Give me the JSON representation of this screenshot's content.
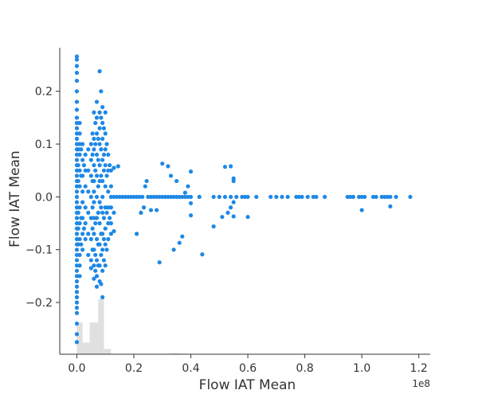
{
  "chart_data": {
    "type": "scatter",
    "title": "",
    "xlabel": "Flow IAT Mean",
    "ylabel": "Flow IAT Mean",
    "x_offset_label": "1e8",
    "xlim": [
      -0.06,
      1.24
    ],
    "ylim": [
      -0.298,
      0.29
    ],
    "x_ticks": [
      0.0,
      0.2,
      0.4,
      0.6,
      0.8,
      1.0,
      1.2
    ],
    "x_tick_labels": [
      "0.0",
      "0.2",
      "0.4",
      "0.6",
      "0.8",
      "1.0",
      "1.2"
    ],
    "y_ticks": [
      -0.2,
      -0.1,
      0.0,
      0.1,
      0.2
    ],
    "y_tick_labels": [
      "−0.2",
      "−0.1",
      "0.0",
      "0.1",
      "0.2"
    ],
    "grid": false,
    "point_color": "#1e88e5",
    "histogram_color": "#e0e0e0",
    "histogram": {
      "bins": [
        {
          "x0": 0.0,
          "x1": 0.02,
          "height": 0.06
        },
        {
          "x0": 0.02,
          "x1": 0.045,
          "height": 0.022
        },
        {
          "x0": 0.045,
          "x1": 0.075,
          "height": 0.06
        },
        {
          "x0": 0.075,
          "x1": 0.095,
          "height": 0.105
        },
        {
          "x0": 0.095,
          "x1": 0.12,
          "height": 0.01
        },
        {
          "x0": 0.33,
          "x1": 0.36,
          "height": 0.002
        }
      ]
    },
    "points": [
      [
        0.0,
        0.266
      ],
      [
        0.0,
        0.26
      ],
      [
        0.0,
        0.248
      ],
      [
        0.0,
        0.235
      ],
      [
        0.0,
        0.22
      ],
      [
        0.0,
        0.2
      ],
      [
        0.0,
        0.18
      ],
      [
        0.0,
        0.165
      ],
      [
        0.0,
        0.15
      ],
      [
        0.0,
        0.14
      ],
      [
        0.0,
        0.13
      ],
      [
        0.0,
        0.12
      ],
      [
        0.0,
        0.11
      ],
      [
        0.0,
        0.1
      ],
      [
        0.0,
        0.09
      ],
      [
        0.0,
        0.08
      ],
      [
        0.0,
        0.07
      ],
      [
        0.0,
        0.06
      ],
      [
        0.0,
        0.05
      ],
      [
        0.0,
        0.04
      ],
      [
        0.0,
        0.03
      ],
      [
        0.0,
        0.02
      ],
      [
        0.0,
        0.01
      ],
      [
        0.0,
        0.0
      ],
      [
        0.0,
        -0.01
      ],
      [
        0.0,
        -0.02
      ],
      [
        0.0,
        -0.03
      ],
      [
        0.0,
        -0.04
      ],
      [
        0.0,
        -0.05
      ],
      [
        0.0,
        -0.06
      ],
      [
        0.0,
        -0.07
      ],
      [
        0.0,
        -0.08
      ],
      [
        0.0,
        -0.09
      ],
      [
        0.0,
        -0.1
      ],
      [
        0.0,
        -0.11
      ],
      [
        0.0,
        -0.12
      ],
      [
        0.0,
        -0.13
      ],
      [
        0.0,
        -0.14
      ],
      [
        0.0,
        -0.15
      ],
      [
        0.0,
        -0.16
      ],
      [
        0.0,
        -0.17
      ],
      [
        0.0,
        -0.18
      ],
      [
        0.0,
        -0.19
      ],
      [
        0.0,
        -0.2
      ],
      [
        0.0,
        -0.21
      ],
      [
        0.0,
        -0.22
      ],
      [
        0.0,
        -0.24
      ],
      [
        0.0,
        -0.26
      ],
      [
        0.0,
        -0.275
      ],
      [
        0.005,
        0.09
      ],
      [
        0.005,
        0.06
      ],
      [
        0.005,
        0.03
      ],
      [
        0.005,
        -0.03
      ],
      [
        0.005,
        -0.06
      ],
      [
        0.005,
        -0.09
      ],
      [
        0.01,
        0.14
      ],
      [
        0.01,
        0.12
      ],
      [
        0.01,
        0.1
      ],
      [
        0.01,
        0.08
      ],
      [
        0.01,
        0.05
      ],
      [
        0.01,
        0.02
      ],
      [
        0.01,
        -0.02
      ],
      [
        0.01,
        -0.05
      ],
      [
        0.01,
        -0.08
      ],
      [
        0.01,
        -0.11
      ],
      [
        0.01,
        -0.13
      ],
      [
        0.01,
        -0.15
      ],
      [
        0.015,
        0.09
      ],
      [
        0.015,
        0.04
      ],
      [
        0.015,
        -0.04
      ],
      [
        0.015,
        -0.09
      ],
      [
        0.02,
        0.1
      ],
      [
        0.02,
        0.07
      ],
      [
        0.02,
        0.04
      ],
      [
        0.02,
        0.01
      ],
      [
        0.02,
        -0.01
      ],
      [
        0.02,
        -0.04
      ],
      [
        0.02,
        -0.07
      ],
      [
        0.02,
        -0.1
      ],
      [
        0.025,
        0.06
      ],
      [
        0.025,
        -0.06
      ],
      [
        0.03,
        0.08
      ],
      [
        0.03,
        0.05
      ],
      [
        0.03,
        0.02
      ],
      [
        0.03,
        -0.02
      ],
      [
        0.03,
        -0.05
      ],
      [
        0.03,
        -0.08
      ],
      [
        0.04,
        0.09
      ],
      [
        0.04,
        0.05
      ],
      [
        0.04,
        0.01
      ],
      [
        0.04,
        -0.03
      ],
      [
        0.04,
        -0.07
      ],
      [
        0.04,
        -0.11
      ],
      [
        0.05,
        0.1
      ],
      [
        0.05,
        0.07
      ],
      [
        0.05,
        0.04
      ],
      [
        0.05,
        0.0
      ],
      [
        0.05,
        -0.04
      ],
      [
        0.05,
        -0.08
      ],
      [
        0.05,
        -0.12
      ],
      [
        0.05,
        -0.135
      ],
      [
        0.055,
        0.12
      ],
      [
        0.055,
        0.08
      ],
      [
        0.055,
        0.03
      ],
      [
        0.055,
        -0.02
      ],
      [
        0.055,
        -0.06
      ],
      [
        0.055,
        -0.1
      ],
      [
        0.06,
        0.16
      ],
      [
        0.06,
        0.11
      ],
      [
        0.06,
        0.09
      ],
      [
        0.06,
        0.06
      ],
      [
        0.06,
        0.03
      ],
      [
        0.06,
        0.01
      ],
      [
        0.06,
        -0.01
      ],
      [
        0.06,
        -0.04
      ],
      [
        0.06,
        -0.07
      ],
      [
        0.06,
        -0.1
      ],
      [
        0.06,
        -0.13
      ],
      [
        0.06,
        -0.155
      ],
      [
        0.065,
        0.14
      ],
      [
        0.065,
        0.1
      ],
      [
        0.065,
        0.05
      ],
      [
        0.065,
        -0.05
      ],
      [
        0.065,
        -0.11
      ],
      [
        0.065,
        -0.14
      ],
      [
        0.07,
        0.18
      ],
      [
        0.07,
        0.15
      ],
      [
        0.07,
        0.12
      ],
      [
        0.07,
        0.08
      ],
      [
        0.07,
        0.04
      ],
      [
        0.07,
        0.0
      ],
      [
        0.07,
        -0.04
      ],
      [
        0.07,
        -0.08
      ],
      [
        0.07,
        -0.12
      ],
      [
        0.07,
        -0.15
      ],
      [
        0.07,
        -0.17
      ],
      [
        0.075,
        0.11
      ],
      [
        0.075,
        0.07
      ],
      [
        0.075,
        0.02
      ],
      [
        0.075,
        -0.03
      ],
      [
        0.075,
        -0.09
      ],
      [
        0.075,
        -0.13
      ],
      [
        0.08,
        0.238
      ],
      [
        0.08,
        0.16
      ],
      [
        0.08,
        0.13
      ],
      [
        0.08,
        0.1
      ],
      [
        0.08,
        0.06
      ],
      [
        0.08,
        0.03
      ],
      [
        0.08,
        -0.01
      ],
      [
        0.08,
        -0.05
      ],
      [
        0.08,
        -0.09
      ],
      [
        0.08,
        -0.13
      ],
      [
        0.08,
        -0.16
      ],
      [
        0.085,
        0.2
      ],
      [
        0.085,
        0.15
      ],
      [
        0.085,
        0.09
      ],
      [
        0.085,
        0.04
      ],
      [
        0.085,
        -0.02
      ],
      [
        0.085,
        -0.07
      ],
      [
        0.085,
        -0.11
      ],
      [
        0.085,
        -0.165
      ],
      [
        0.09,
        0.17
      ],
      [
        0.09,
        0.14
      ],
      [
        0.09,
        0.11
      ],
      [
        0.09,
        0.07
      ],
      [
        0.09,
        0.03
      ],
      [
        0.09,
        0.0
      ],
      [
        0.09,
        -0.03
      ],
      [
        0.09,
        -0.07
      ],
      [
        0.09,
        -0.1
      ],
      [
        0.09,
        -0.14
      ],
      [
        0.09,
        -0.19
      ],
      [
        0.095,
        0.13
      ],
      [
        0.095,
        0.08
      ],
      [
        0.095,
        0.05
      ],
      [
        0.095,
        -0.04
      ],
      [
        0.095,
        -0.08
      ],
      [
        0.095,
        -0.12
      ],
      [
        0.1,
        0.16
      ],
      [
        0.1,
        0.12
      ],
      [
        0.1,
        0.09
      ],
      [
        0.1,
        0.06
      ],
      [
        0.1,
        0.02
      ],
      [
        0.1,
        -0.02
      ],
      [
        0.1,
        -0.06
      ],
      [
        0.1,
        -0.09
      ],
      [
        0.1,
        -0.13
      ],
      [
        0.105,
        0.1
      ],
      [
        0.105,
        0.04
      ],
      [
        0.105,
        -0.03
      ],
      [
        0.105,
        -0.1
      ],
      [
        0.11,
        0.08
      ],
      [
        0.11,
        0.05
      ],
      [
        0.11,
        0.01
      ],
      [
        0.11,
        -0.02
      ],
      [
        0.11,
        -0.05
      ],
      [
        0.11,
        -0.08
      ],
      [
        0.115,
        0.06
      ],
      [
        0.115,
        -0.04
      ],
      [
        0.12,
        0.05
      ],
      [
        0.12,
        0.02
      ],
      [
        0.12,
        0.0
      ],
      [
        0.12,
        -0.02
      ],
      [
        0.12,
        -0.05
      ],
      [
        0.12,
        -0.07
      ],
      [
        0.13,
        0.055
      ],
      [
        0.13,
        0.0
      ],
      [
        0.13,
        -0.03
      ],
      [
        0.13,
        -0.065
      ],
      [
        0.14,
        0.0
      ],
      [
        0.145,
        0.058
      ],
      [
        0.15,
        0.0
      ],
      [
        0.16,
        0.0
      ],
      [
        0.17,
        0.0
      ],
      [
        0.18,
        0.0
      ],
      [
        0.19,
        0.0
      ],
      [
        0.2,
        0.0
      ],
      [
        0.21,
        0.0
      ],
      [
        0.22,
        0.0
      ],
      [
        0.23,
        0.0
      ],
      [
        0.25,
        0.0
      ],
      [
        0.26,
        0.0
      ],
      [
        0.27,
        0.0
      ],
      [
        0.28,
        0.0
      ],
      [
        0.29,
        0.0
      ],
      [
        0.3,
        0.0
      ],
      [
        0.31,
        0.0
      ],
      [
        0.32,
        0.0
      ],
      [
        0.33,
        0.0
      ],
      [
        0.34,
        0.0
      ],
      [
        0.35,
        0.0
      ],
      [
        0.36,
        0.0
      ],
      [
        0.37,
        0.0
      ],
      [
        0.38,
        0.0
      ],
      [
        0.39,
        0.0
      ],
      [
        0.4,
        0.0
      ],
      [
        0.43,
        0.0
      ],
      [
        0.48,
        0.0
      ],
      [
        0.5,
        0.0
      ],
      [
        0.52,
        0.0
      ],
      [
        0.54,
        0.0
      ],
      [
        0.56,
        0.0
      ],
      [
        0.58,
        0.0
      ],
      [
        0.59,
        0.0
      ],
      [
        0.6,
        0.0
      ],
      [
        0.63,
        0.0
      ],
      [
        0.68,
        0.0
      ],
      [
        0.7,
        0.0
      ],
      [
        0.72,
        0.0
      ],
      [
        0.74,
        0.0
      ],
      [
        0.77,
        0.0
      ],
      [
        0.78,
        0.0
      ],
      [
        0.79,
        0.0
      ],
      [
        0.81,
        0.0
      ],
      [
        0.83,
        0.0
      ],
      [
        0.84,
        0.0
      ],
      [
        0.87,
        0.0
      ],
      [
        0.95,
        0.0
      ],
      [
        0.96,
        0.0
      ],
      [
        0.97,
        0.0
      ],
      [
        0.99,
        0.0
      ],
      [
        1.0,
        0.0
      ],
      [
        1.01,
        0.0
      ],
      [
        1.04,
        0.0
      ],
      [
        1.05,
        0.0
      ],
      [
        1.07,
        0.0
      ],
      [
        1.08,
        0.0
      ],
      [
        1.09,
        0.0
      ],
      [
        1.1,
        0.0
      ],
      [
        1.12,
        0.0
      ],
      [
        1.17,
        0.0
      ],
      [
        0.21,
        -0.07
      ],
      [
        0.225,
        -0.03
      ],
      [
        0.235,
        -0.02
      ],
      [
        0.245,
        0.03
      ],
      [
        0.24,
        0.02
      ],
      [
        0.26,
        -0.025
      ],
      [
        0.29,
        -0.124
      ],
      [
        0.28,
        -0.025
      ],
      [
        0.3,
        0.063
      ],
      [
        0.32,
        0.058
      ],
      [
        0.33,
        0.04
      ],
      [
        0.34,
        -0.1
      ],
      [
        0.35,
        0.03
      ],
      [
        0.36,
        -0.087
      ],
      [
        0.37,
        -0.075
      ],
      [
        0.38,
        0.008
      ],
      [
        0.39,
        0.02
      ],
      [
        0.4,
        -0.012
      ],
      [
        0.4,
        -0.035
      ],
      [
        0.4,
        0.048
      ],
      [
        0.44,
        -0.109
      ],
      [
        0.48,
        -0.056
      ],
      [
        0.51,
        -0.038
      ],
      [
        0.52,
        0.057
      ],
      [
        0.53,
        -0.03
      ],
      [
        0.54,
        -0.02
      ],
      [
        0.54,
        0.058
      ],
      [
        0.55,
        -0.037
      ],
      [
        0.55,
        -0.01
      ],
      [
        0.55,
        0.03
      ],
      [
        0.55,
        0.035
      ],
      [
        0.6,
        -0.038
      ],
      [
        1.0,
        -0.025
      ],
      [
        1.1,
        -0.018
      ]
    ]
  }
}
